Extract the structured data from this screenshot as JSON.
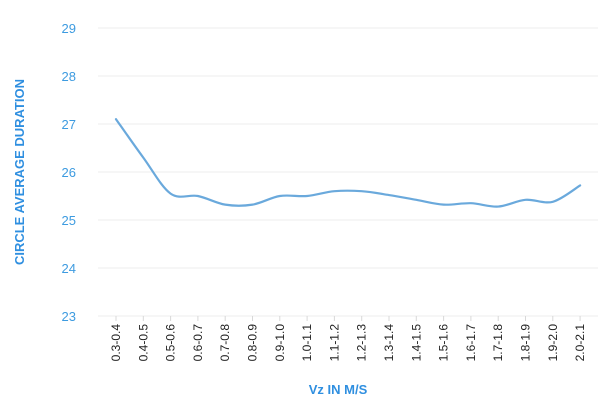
{
  "chart_data": {
    "type": "line",
    "title": "",
    "xlabel": "Vz IN M/S",
    "ylabel": "CIRCLE AVERAGE DURATION",
    "categories": [
      "0.3-0.4",
      "0.4-0.5",
      "0.5-0.6",
      "0.6-0.7",
      "0.7-0.8",
      "0.8-0.9",
      "0.9-1.0",
      "1.0-1.1",
      "1.1-1.2",
      "1.2-1.3",
      "1.3-1.4",
      "1.4-1.5",
      "1.5-1.6",
      "1.6-1.7",
      "1.7-1.8",
      "1.8-1.9",
      "1.9-2.0",
      "2.0-2.1"
    ],
    "series": [
      {
        "values": [
          27.1,
          26.3,
          25.55,
          25.5,
          25.32,
          25.32,
          25.5,
          25.5,
          25.6,
          25.6,
          25.52,
          25.42,
          25.32,
          25.35,
          25.28,
          25.42,
          25.38,
          25.72
        ]
      }
    ],
    "yticks": [
      23,
      24,
      25,
      26,
      27,
      28,
      29
    ],
    "ylim": [
      23,
      29
    ],
    "grid": true,
    "legend": "none",
    "colors": {
      "line": "#6aa9dc",
      "axis_text": "#3d9be0",
      "grid": "#ececec"
    }
  }
}
